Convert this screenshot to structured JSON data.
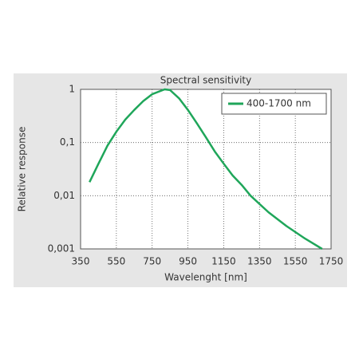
{
  "chart_data": {
    "type": "line",
    "title": "Spectral sensitivity",
    "x_label": "Wavelenght [nm]",
    "y_label": "Relative response",
    "log_y": true,
    "grid": true,
    "legend_position": "upper right",
    "xlim": [
      350,
      1750
    ],
    "xticks": [
      350,
      550,
      750,
      950,
      1150,
      1350,
      1550,
      1750
    ],
    "ylim": [
      0.001,
      1
    ],
    "yticks": [
      {
        "value": 0.001,
        "label": "0,001"
      },
      {
        "value": 0.01,
        "label": "0,01"
      },
      {
        "value": 0.1,
        "label": "0,1"
      },
      1
    ],
    "series": [
      {
        "name": "400-1700 nm",
        "color": "#1fa65a",
        "x": [
          400,
          450,
          500,
          550,
          600,
          650,
          700,
          750,
          820,
          850,
          900,
          950,
          1000,
          1050,
          1100,
          1150,
          1200,
          1250,
          1300,
          1400,
          1500,
          1600,
          1700
        ],
        "values": [
          0.018,
          0.04,
          0.087,
          0.16,
          0.27,
          0.41,
          0.6,
          0.81,
          1,
          0.97,
          0.68,
          0.41,
          0.23,
          0.126,
          0.068,
          0.04,
          0.024,
          0.016,
          0.01,
          0.0049,
          0.0027,
          0.0016,
          0.001
        ]
      }
    ]
  }
}
